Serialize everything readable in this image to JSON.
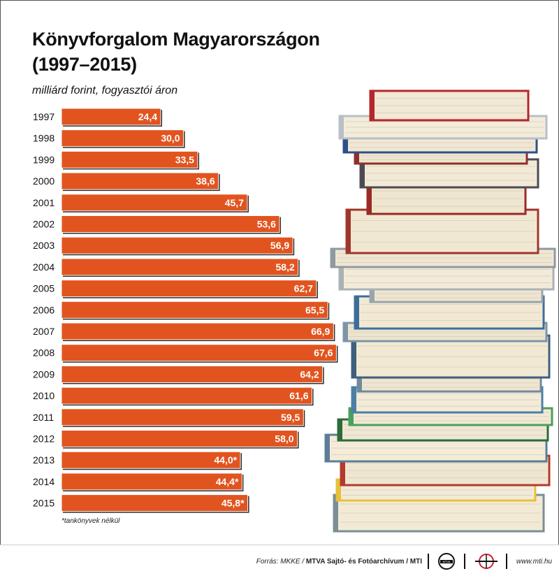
{
  "chart_data": {
    "type": "bar",
    "orientation": "horizontal",
    "title_line1": "Könyvforgalom Magyarországon",
    "title_line2": "(1997–2015)",
    "subtitle": "milliárd forint, fogyasztói áron",
    "categories": [
      "1997",
      "1998",
      "1999",
      "2000",
      "2001",
      "2002",
      "2003",
      "2004",
      "2005",
      "2006",
      "2007",
      "2008",
      "2009",
      "2010",
      "2011",
      "2012",
      "2013",
      "2014",
      "2015"
    ],
    "values": [
      24.4,
      30.0,
      33.5,
      38.6,
      45.7,
      53.6,
      56.9,
      58.2,
      62.7,
      65.5,
      66.9,
      67.6,
      64.2,
      61.6,
      59.5,
      58.0,
      44.0,
      44.4,
      45.8
    ],
    "value_labels": [
      "24,4",
      "30,0",
      "33,5",
      "38,6",
      "45,7",
      "53,6",
      "56,9",
      "58,2",
      "62,7",
      "65,5",
      "66,9",
      "67,6",
      "64,2",
      "61,6",
      "59,5",
      "58,0",
      "44,0*",
      "44,4*",
      "45,8*"
    ],
    "bar_color": "#e2541f",
    "footnote": "*tankönyvek nélkül",
    "grid": false,
    "legend": "none"
  },
  "footer": {
    "source_label": "Forrás: MKKE / ",
    "source_bold": "MTVA Sajtó- és Fotóarchívum / MTI",
    "site": "www.mti.hu"
  }
}
